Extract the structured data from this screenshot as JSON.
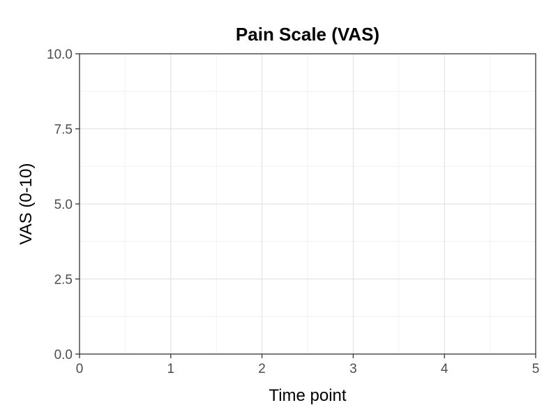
{
  "chart_data": {
    "type": "line",
    "title": "Pain Scale (VAS)",
    "xlabel": "Time point",
    "ylabel": "VAS (0-10)",
    "xlim": [
      0,
      5
    ],
    "ylim": [
      0,
      10
    ],
    "x_ticks": [
      0,
      1,
      2,
      3,
      4,
      5
    ],
    "x_tick_labels": [
      "0",
      "1",
      "2",
      "3",
      "4",
      "5"
    ],
    "y_ticks": [
      0,
      2.5,
      5,
      7.5,
      10
    ],
    "y_tick_labels": [
      "0.0",
      "2.5",
      "5.0",
      "7.5",
      "10.0"
    ],
    "grid": true,
    "series": []
  }
}
